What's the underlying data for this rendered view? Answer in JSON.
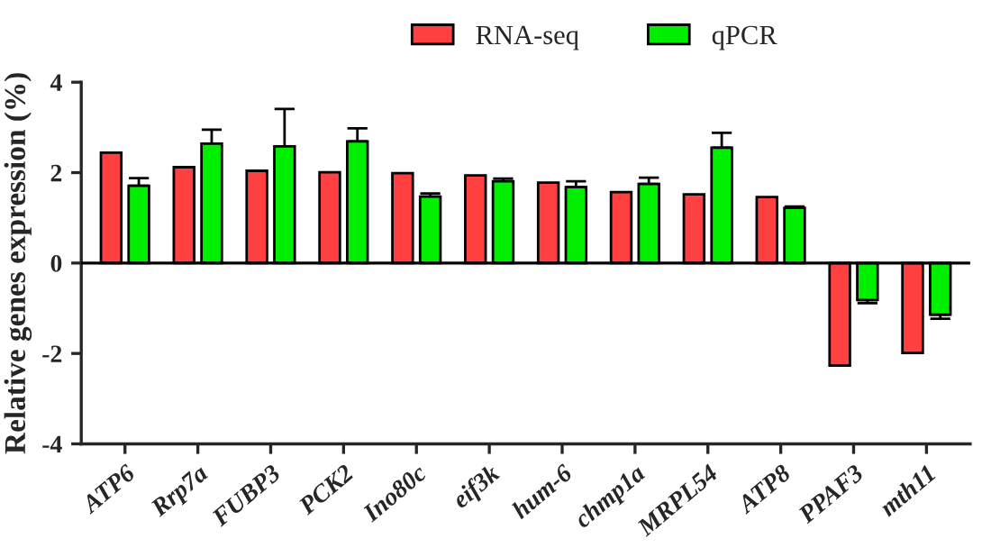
{
  "chart_data": {
    "type": "bar",
    "ylabel": "Relative genes expression (%)",
    "categories": [
      "ATP6",
      "Rrp7a",
      "FUBP3",
      "PCK2",
      "Ino80c",
      "eif3k",
      "hum-6",
      "chmp1a",
      "MRPL54",
      "ATP8",
      "PPAF3",
      "mth11"
    ],
    "series": [
      {
        "name": "RNA-seq",
        "color": "#ff4040",
        "values": [
          2.44,
          2.12,
          2.04,
          2.01,
          1.99,
          1.94,
          1.78,
          1.57,
          1.52,
          1.46,
          -2.27,
          -1.99
        ]
      },
      {
        "name": "qPCR",
        "color": "#00ee00",
        "values": [
          1.71,
          2.64,
          2.58,
          2.69,
          1.47,
          1.81,
          1.68,
          1.75,
          2.55,
          1.22,
          -0.82,
          -1.14
        ],
        "errors": [
          [
            1.71,
            1.88
          ],
          [
            2.64,
            2.95
          ],
          [
            2.58,
            3.41
          ],
          [
            2.69,
            2.98
          ],
          [
            1.47,
            1.54
          ],
          [
            1.81,
            1.87
          ],
          [
            1.68,
            1.81
          ],
          [
            1.75,
            1.89
          ],
          [
            2.55,
            2.88
          ],
          [
            1.22,
            1.25
          ],
          [
            -0.89,
            -0.82
          ],
          [
            -1.23,
            -1.14
          ]
        ]
      }
    ],
    "ylim": [
      -4,
      4
    ],
    "yticks": [
      -4,
      -2,
      0,
      2,
      4
    ],
    "ref_lines": [
      {
        "axis": "y",
        "value": 0,
        "color": "#000000"
      }
    ],
    "legend": "top",
    "grid": false
  }
}
